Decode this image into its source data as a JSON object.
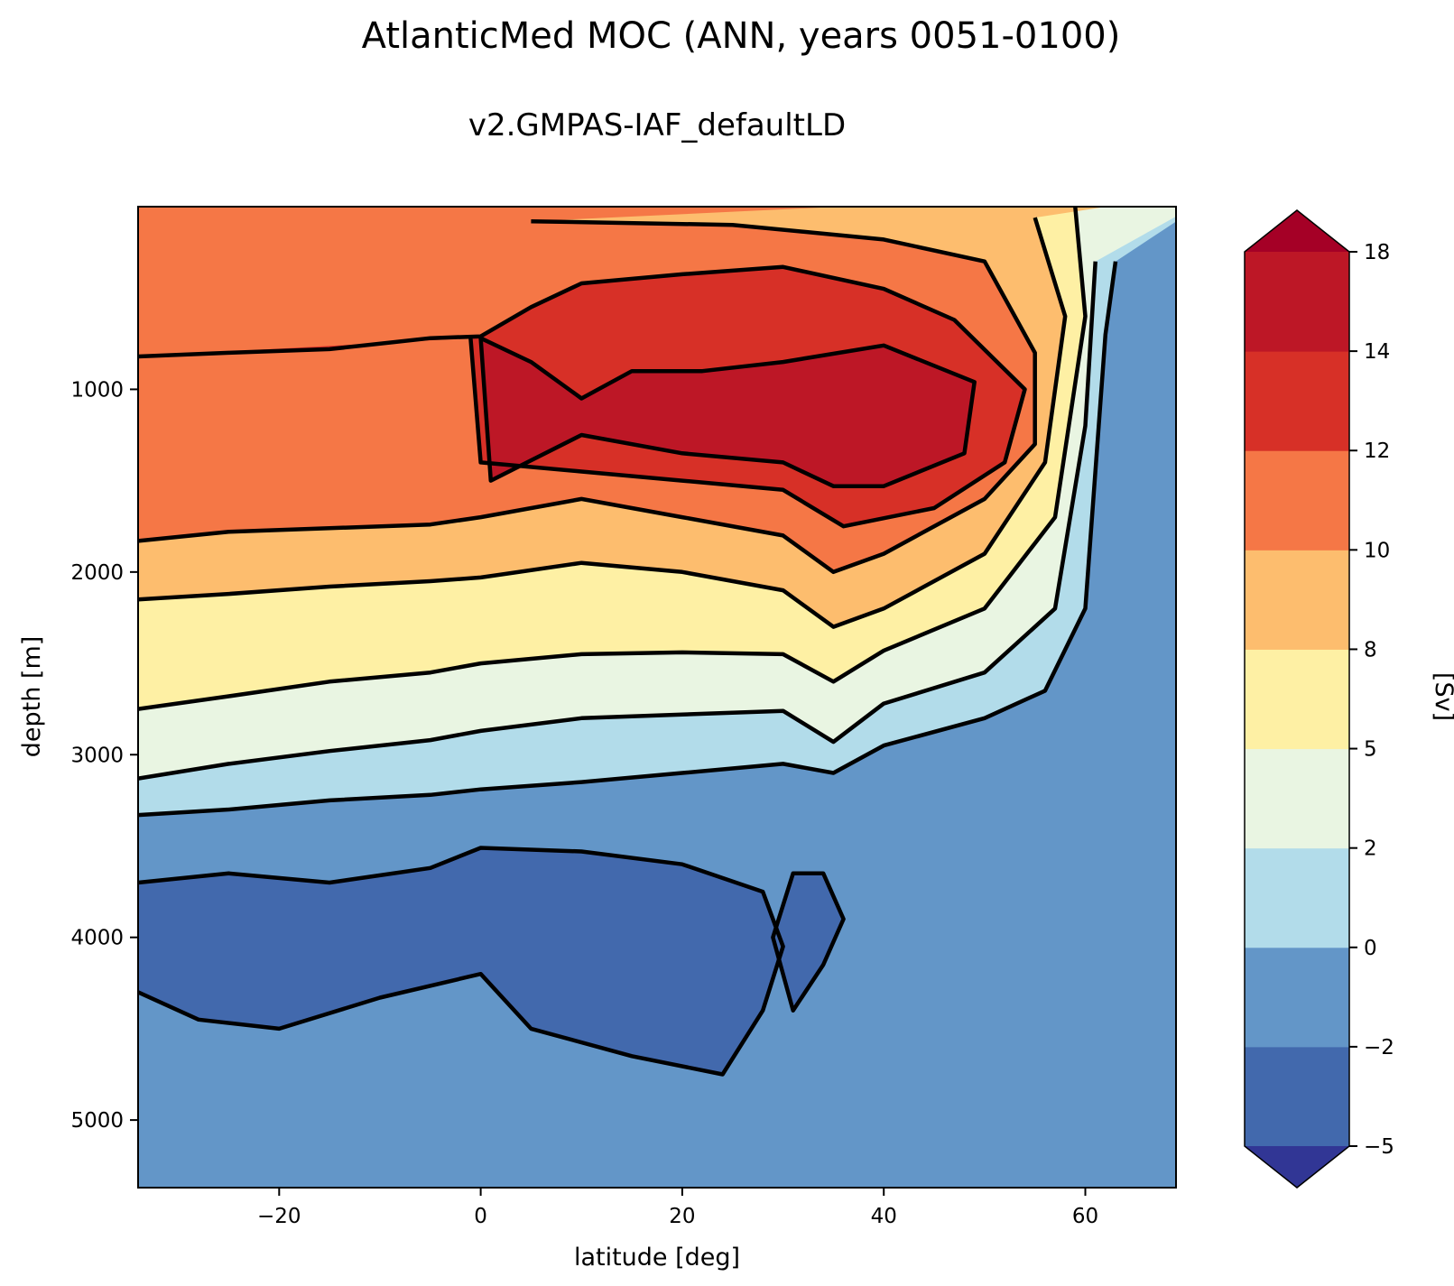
{
  "chart_data": {
    "type": "contourf",
    "title": "AtlanticMed MOC (ANN, years 0051-0100)",
    "subtitle": "v2.GMPAS-IAF_defaultLD",
    "xlabel": "latitude [deg]",
    "ylabel": "depth [m]",
    "xlim": [
      -34,
      69
    ],
    "ylim": [
      0,
      5370
    ],
    "y_inverted": true,
    "xticks": [
      -20,
      0,
      20,
      40,
      60
    ],
    "yticks": [
      1000,
      2000,
      3000,
      4000,
      5000
    ],
    "xtick_labels": [
      "−20",
      "0",
      "20",
      "40",
      "60"
    ],
    "ytick_labels": [
      "1000",
      "2000",
      "3000",
      "4000",
      "5000"
    ],
    "colorbar": {
      "label": "[Sv]",
      "levels": [
        -5,
        -2,
        0,
        2,
        5,
        8,
        10,
        12,
        14,
        18
      ],
      "level_labels": [
        "−5",
        "−2",
        "0",
        "2",
        "5",
        "8",
        "10",
        "12",
        "14",
        "18"
      ],
      "colors": [
        "#4269ad",
        "#6396c8",
        "#b2dcea",
        "#e9f5e2",
        "#fef0a4",
        "#fdbd6e",
        "#f57746",
        "#d73027",
        "#bd1726"
      ],
      "extend_under_color": "#313695",
      "extend_over_color": "#a50026"
    },
    "contour_lines": [
      {
        "level": 0,
        "points": [
          [
            -34,
            3330
          ],
          [
            -25,
            3300
          ],
          [
            -15,
            3250
          ],
          [
            -5,
            3220
          ],
          [
            0,
            3190
          ],
          [
            10,
            3150
          ],
          [
            20,
            3100
          ],
          [
            30,
            3050
          ],
          [
            35,
            3100
          ],
          [
            40,
            2950
          ],
          [
            50,
            2800
          ],
          [
            56,
            2650
          ],
          [
            60,
            2200
          ],
          [
            62,
            700
          ],
          [
            63,
            300
          ]
        ]
      },
      {
        "level": 2,
        "points": [
          [
            -34,
            3130
          ],
          [
            -25,
            3050
          ],
          [
            -15,
            2980
          ],
          [
            -5,
            2920
          ],
          [
            0,
            2870
          ],
          [
            10,
            2800
          ],
          [
            20,
            2780
          ],
          [
            30,
            2760
          ],
          [
            35,
            2930
          ],
          [
            40,
            2720
          ],
          [
            50,
            2550
          ],
          [
            57,
            2200
          ],
          [
            60,
            1200
          ],
          [
            61,
            300
          ]
        ]
      },
      {
        "level": 5,
        "points": [
          [
            -34,
            2750
          ],
          [
            -25,
            2680
          ],
          [
            -15,
            2600
          ],
          [
            -5,
            2550
          ],
          [
            0,
            2500
          ],
          [
            10,
            2450
          ],
          [
            20,
            2440
          ],
          [
            30,
            2450
          ],
          [
            35,
            2600
          ],
          [
            40,
            2430
          ],
          [
            50,
            2200
          ],
          [
            57,
            1700
          ],
          [
            60,
            600
          ],
          [
            59,
            0
          ]
        ]
      },
      {
        "level": 8,
        "points": [
          [
            -34,
            2150
          ],
          [
            -25,
            2120
          ],
          [
            -15,
            2080
          ],
          [
            -5,
            2050
          ],
          [
            0,
            2030
          ],
          [
            10,
            1950
          ],
          [
            20,
            2000
          ],
          [
            30,
            2100
          ],
          [
            35,
            2300
          ],
          [
            40,
            2200
          ],
          [
            50,
            1900
          ],
          [
            56,
            1400
          ],
          [
            58,
            600
          ],
          [
            55,
            60
          ]
        ]
      },
      {
        "level": 10,
        "points": [
          [
            -34,
            1830
          ],
          [
            -25,
            1780
          ],
          [
            -15,
            1760
          ],
          [
            -5,
            1740
          ],
          [
            0,
            1700
          ],
          [
            10,
            1600
          ],
          [
            20,
            1700
          ],
          [
            30,
            1800
          ],
          [
            35,
            2000
          ],
          [
            40,
            1900
          ],
          [
            50,
            1600
          ],
          [
            55,
            1300
          ],
          [
            55,
            800
          ],
          [
            50,
            300
          ],
          [
            40,
            180
          ],
          [
            25,
            100
          ],
          [
            5,
            80
          ]
        ]
      },
      {
        "level": 12,
        "points": [
          [
            -34,
            820
          ],
          [
            -25,
            800
          ],
          [
            -15,
            780
          ],
          [
            -5,
            720
          ],
          [
            0,
            710
          ],
          [
            5,
            550
          ],
          [
            10,
            420
          ],
          [
            20,
            370
          ],
          [
            30,
            330
          ],
          [
            40,
            450
          ],
          [
            47,
            620
          ],
          [
            54,
            1000
          ],
          [
            52,
            1400
          ],
          [
            45,
            1650
          ],
          [
            36,
            1750
          ],
          [
            30,
            1550
          ],
          [
            20,
            1500
          ],
          [
            10,
            1450
          ],
          [
            0,
            1400
          ],
          [
            -1,
            720
          ]
        ]
      },
      {
        "level": 14,
        "points": [
          [
            0,
            720
          ],
          [
            5,
            850
          ],
          [
            10,
            1050
          ],
          [
            15,
            900
          ],
          [
            22,
            900
          ],
          [
            30,
            850
          ],
          [
            40,
            760
          ],
          [
            49,
            960
          ],
          [
            48,
            1350
          ],
          [
            40,
            1530
          ],
          [
            35,
            1530
          ],
          [
            30,
            1400
          ],
          [
            20,
            1350
          ],
          [
            10,
            1250
          ],
          [
            1,
            1500
          ],
          [
            0,
            720
          ]
        ]
      },
      {
        "level": -2,
        "points": [
          [
            -34,
            3700
          ],
          [
            -25,
            3650
          ],
          [
            -15,
            3700
          ],
          [
            -5,
            3620
          ],
          [
            0,
            3510
          ],
          [
            10,
            3530
          ],
          [
            20,
            3600
          ],
          [
            28,
            3750
          ],
          [
            30,
            4050
          ],
          [
            28,
            4400
          ],
          [
            24,
            4750
          ],
          [
            15,
            4650
          ],
          [
            5,
            4500
          ],
          [
            0,
            4200
          ],
          [
            -10,
            4330
          ],
          [
            -20,
            4500
          ],
          [
            -28,
            4450
          ],
          [
            -34,
            4300
          ]
        ]
      },
      {
        "level": -2,
        "points": [
          [
            31,
            3650
          ],
          [
            34,
            3650
          ],
          [
            36,
            3900
          ],
          [
            34,
            4150
          ],
          [
            31,
            4400
          ],
          [
            29,
            4000
          ],
          [
            31,
            3650
          ]
        ]
      }
    ]
  }
}
